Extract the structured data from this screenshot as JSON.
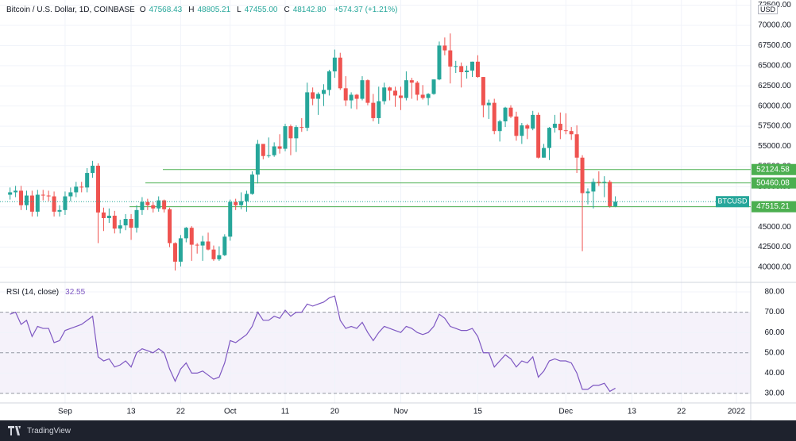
{
  "chart_data": [
    {
      "type": "candlestick",
      "title": "Bitcoin / U.S. Dollar, 1D, COINBASE",
      "symbol": "BTCUSD",
      "currency": "USD",
      "fields": [
        {
          "key": "O",
          "value": "47568.43"
        },
        {
          "key": "H",
          "value": "48805.21"
        },
        {
          "key": "L",
          "value": "47455.00"
        },
        {
          "key": "C",
          "value": "48142.80"
        }
      ],
      "change": "+574.37 (+1.21%)",
      "up_color": "#26a69a",
      "down_color": "#ef5350",
      "ohlc": [
        [
          49000,
          49900,
          48400,
          49300
        ],
        [
          49300,
          50100,
          48700,
          49500
        ],
        [
          49500,
          50100,
          47100,
          47700
        ],
        [
          47700,
          49500,
          47100,
          48900
        ],
        [
          48900,
          49500,
          46300,
          46900
        ],
        [
          46900,
          49600,
          46300,
          49000
        ],
        [
          49000,
          49600,
          48300,
          48900
        ],
        [
          48900,
          49500,
          48200,
          48800
        ],
        [
          48800,
          49400,
          46300,
          46900
        ],
        [
          46900,
          47700,
          46300,
          47100
        ],
        [
          47100,
          49400,
          46500,
          48800
        ],
        [
          48800,
          49900,
          48200,
          49300
        ],
        [
          49300,
          50600,
          48700,
          50000
        ],
        [
          50000,
          50600,
          49300,
          49900
        ],
        [
          49900,
          52300,
          49300,
          51700
        ],
        [
          51700,
          53200,
          51100,
          52600
        ],
        [
          52600,
          52900,
          43000,
          46800
        ],
        [
          46800,
          47400,
          44500,
          46100
        ],
        [
          46100,
          47300,
          45500,
          46400
        ],
        [
          46400,
          47000,
          44200,
          44800
        ],
        [
          44800,
          45900,
          44200,
          45200
        ],
        [
          45200,
          46600,
          44600,
          46000
        ],
        [
          46000,
          46600,
          43400,
          44900
        ],
        [
          44900,
          47700,
          44300,
          47100
        ],
        [
          47100,
          48700,
          46500,
          48100
        ],
        [
          48100,
          48500,
          47100,
          47700
        ],
        [
          47700,
          48100,
          46800,
          47300
        ],
        [
          47300,
          48800,
          46900,
          48300
        ],
        [
          48300,
          48400,
          46800,
          47200
        ],
        [
          47200,
          47400,
          42500,
          43000
        ],
        [
          43000,
          43100,
          39600,
          40700
        ],
        [
          40700,
          44000,
          40100,
          43600
        ],
        [
          43600,
          45000,
          43100,
          44900
        ],
        [
          44900,
          45100,
          40800,
          42800
        ],
        [
          42800,
          43000,
          41700,
          42700
        ],
        [
          42700,
          43900,
          40800,
          43200
        ],
        [
          43200,
          44300,
          42100,
          42200
        ],
        [
          42200,
          42700,
          40800,
          41000
        ],
        [
          41000,
          42600,
          40800,
          41500
        ],
        [
          41500,
          44100,
          41400,
          43800
        ],
        [
          43800,
          48400,
          43300,
          48100
        ],
        [
          48100,
          48500,
          47100,
          47700
        ],
        [
          47700,
          49300,
          47200,
          48200
        ],
        [
          48200,
          49500,
          46900,
          49100
        ],
        [
          49100,
          51900,
          49000,
          51500
        ],
        [
          51500,
          55800,
          50400,
          55300
        ],
        [
          55300,
          55300,
          53400,
          53800
        ],
        [
          53800,
          56100,
          53600,
          53900
        ],
        [
          53900,
          55500,
          53700,
          55000
        ],
        [
          55000,
          56500,
          54100,
          54700
        ],
        [
          54700,
          57800,
          54400,
          57500
        ],
        [
          57500,
          57700,
          53900,
          56000
        ],
        [
          56000,
          57600,
          54300,
          57400
        ],
        [
          57400,
          58500,
          56800,
          57300
        ],
        [
          57300,
          62900,
          56900,
          61700
        ],
        [
          61700,
          62300,
          60100,
          60900
        ],
        [
          60900,
          61700,
          58900,
          61500
        ],
        [
          61500,
          62700,
          60000,
          62000
        ],
        [
          62000,
          64500,
          61300,
          64300
        ],
        [
          64300,
          67000,
          63500,
          66000
        ],
        [
          66000,
          66600,
          62000,
          62200
        ],
        [
          62200,
          63700,
          60000,
          60700
        ],
        [
          60700,
          61700,
          59700,
          61400
        ],
        [
          61400,
          61500,
          59600,
          60900
        ],
        [
          60900,
          63700,
          60700,
          63200
        ],
        [
          63200,
          63300,
          60100,
          60400
        ],
        [
          60400,
          61500,
          58100,
          58500
        ],
        [
          58500,
          62400,
          57800,
          60600
        ],
        [
          60600,
          62900,
          60200,
          62300
        ],
        [
          62300,
          62400,
          60700,
          61900
        ],
        [
          61900,
          62400,
          59900,
          61300
        ],
        [
          61300,
          62400,
          59500,
          61000
        ],
        [
          61000,
          64300,
          60700,
          63200
        ],
        [
          63200,
          63500,
          60900,
          62900
        ],
        [
          62900,
          63100,
          60700,
          61400
        ],
        [
          61400,
          62600,
          60800,
          61000
        ],
        [
          61000,
          61600,
          60100,
          61500
        ],
        [
          61500,
          63300,
          61400,
          63300
        ],
        [
          63300,
          68000,
          63200,
          67500
        ],
        [
          67500,
          68500,
          66300,
          66900
        ],
        [
          66900,
          69000,
          62800,
          64900
        ],
        [
          64900,
          65600,
          64100,
          64950
        ],
        [
          64950,
          65400,
          62300,
          64200
        ],
        [
          64200,
          65000,
          63400,
          64400
        ],
        [
          64400,
          65500,
          63600,
          65500
        ],
        [
          65500,
          66300,
          63500,
          63600
        ],
        [
          63600,
          63600,
          58600,
          60100
        ],
        [
          60100,
          60800,
          58400,
          60400
        ],
        [
          60400,
          60900,
          56500,
          56900
        ],
        [
          56900,
          58300,
          55600,
          58100
        ],
        [
          58100,
          59900,
          57400,
          59800
        ],
        [
          59800,
          60100,
          58500,
          58700
        ],
        [
          58700,
          59300,
          55700,
          56300
        ],
        [
          56300,
          57900,
          55300,
          57600
        ],
        [
          57600,
          57800,
          55900,
          57200
        ],
        [
          57200,
          59400,
          57000,
          58900
        ],
        [
          58900,
          59200,
          53500,
          53600
        ],
        [
          53600,
          55300,
          53600,
          54800
        ],
        [
          54800,
          57400,
          53300,
          57300
        ],
        [
          57300,
          58900,
          56700,
          57800
        ],
        [
          57800,
          59200,
          55900,
          57000
        ],
        [
          57000,
          59100,
          56500,
          56900
        ],
        [
          56900,
          57400,
          55800,
          56500
        ],
        [
          56500,
          57600,
          51700,
          53600
        ],
        [
          53600,
          53900,
          42000,
          49200
        ],
        [
          49200,
          49800,
          47800,
          49400
        ],
        [
          49400,
          51000,
          47300,
          50600
        ],
        [
          50600,
          51900,
          50100,
          50500
        ],
        [
          50500,
          51300,
          48700,
          50600
        ],
        [
          50600,
          50800,
          47400,
          47568.43
        ],
        [
          47568.43,
          48805.21,
          47455,
          48142.8
        ]
      ],
      "xlim": [
        -1.83,
        134.6
      ],
      "xticks": [
        {
          "value": 10,
          "label": "Sep"
        },
        {
          "value": 22,
          "label": "13"
        },
        {
          "value": 31,
          "label": "22"
        },
        {
          "value": 40,
          "label": "Oct"
        },
        {
          "value": 50,
          "label": "11"
        },
        {
          "value": 59,
          "label": "20"
        },
        {
          "value": 71,
          "label": "Nov"
        },
        {
          "value": 85,
          "label": "15"
        },
        {
          "value": 101,
          "label": "Dec"
        },
        {
          "value": 113,
          "label": "13"
        },
        {
          "value": 122,
          "label": "22"
        },
        {
          "value": 132,
          "label": "2022"
        }
      ],
      "ylim": [
        38230,
        73150
      ],
      "yticks": [
        {
          "value": 40000,
          "label": "40000.00"
        },
        {
          "value": 42500,
          "label": "42500.00"
        },
        {
          "value": 45000,
          "label": "45000.00"
        },
        {
          "value": 47500,
          "label": "47500.00"
        },
        {
          "value": 50000,
          "label": "50000.00"
        },
        {
          "value": 52500,
          "label": "52500.00"
        },
        {
          "value": 55000,
          "label": "55000.00"
        },
        {
          "value": 57500,
          "label": "57500.00"
        },
        {
          "value": 60000,
          "label": "60000.00"
        },
        {
          "value": 62500,
          "label": "62500.00"
        },
        {
          "value": 65000,
          "label": "65000.00"
        },
        {
          "value": 67500,
          "label": "67500.00"
        },
        {
          "value": 70000,
          "label": "70000.00"
        },
        {
          "value": 72500,
          "label": "72500.00"
        }
      ],
      "levels": [
        {
          "value": 52124.58,
          "label": "52124.58"
        },
        {
          "value": 50460.08,
          "label": "50460.08"
        },
        {
          "value": 47515.21,
          "label": "47515.21"
        }
      ],
      "level_color": "#4caf50",
      "grid": true
    },
    {
      "type": "line",
      "title": "RSI (14, close)",
      "color": "#7e57c2",
      "values": [
        69,
        70,
        64,
        66,
        58,
        63,
        62,
        62,
        55,
        56,
        61,
        62,
        63,
        64,
        66,
        68,
        48,
        46,
        47,
        43,
        44,
        46,
        43,
        50,
        52,
        51,
        50,
        52,
        50,
        42,
        36,
        42,
        45,
        40,
        40,
        41,
        39,
        37,
        38,
        45,
        56,
        55,
        57,
        59,
        63,
        70,
        66,
        66,
        68,
        67,
        71,
        68,
        70,
        70,
        74,
        73,
        74,
        75,
        77,
        78,
        66,
        62,
        63,
        62,
        65,
        60,
        56,
        60,
        63,
        62,
        61,
        60,
        63,
        62,
        60,
        59,
        60,
        63,
        69,
        67,
        63,
        62,
        61,
        61,
        62,
        58,
        50,
        50,
        43,
        46,
        49,
        47,
        43,
        46,
        45,
        48,
        38,
        41,
        46,
        47,
        46,
        46,
        45,
        40,
        32,
        32,
        34,
        34,
        35,
        31,
        32.55
      ],
      "ylim": [
        25.3,
        84.3
      ],
      "yticks": [
        {
          "value": 30,
          "label": "30.00"
        },
        {
          "value": 40,
          "label": "40.00"
        },
        {
          "value": 50,
          "label": "50.00"
        },
        {
          "value": 60,
          "label": "60.00"
        },
        {
          "value": 70,
          "label": "70.00"
        },
        {
          "value": 80,
          "label": "80.00"
        }
      ],
      "levels": [
        30,
        50,
        70
      ],
      "grid": true
    }
  ],
  "footer": {
    "brand": "TradingView"
  }
}
